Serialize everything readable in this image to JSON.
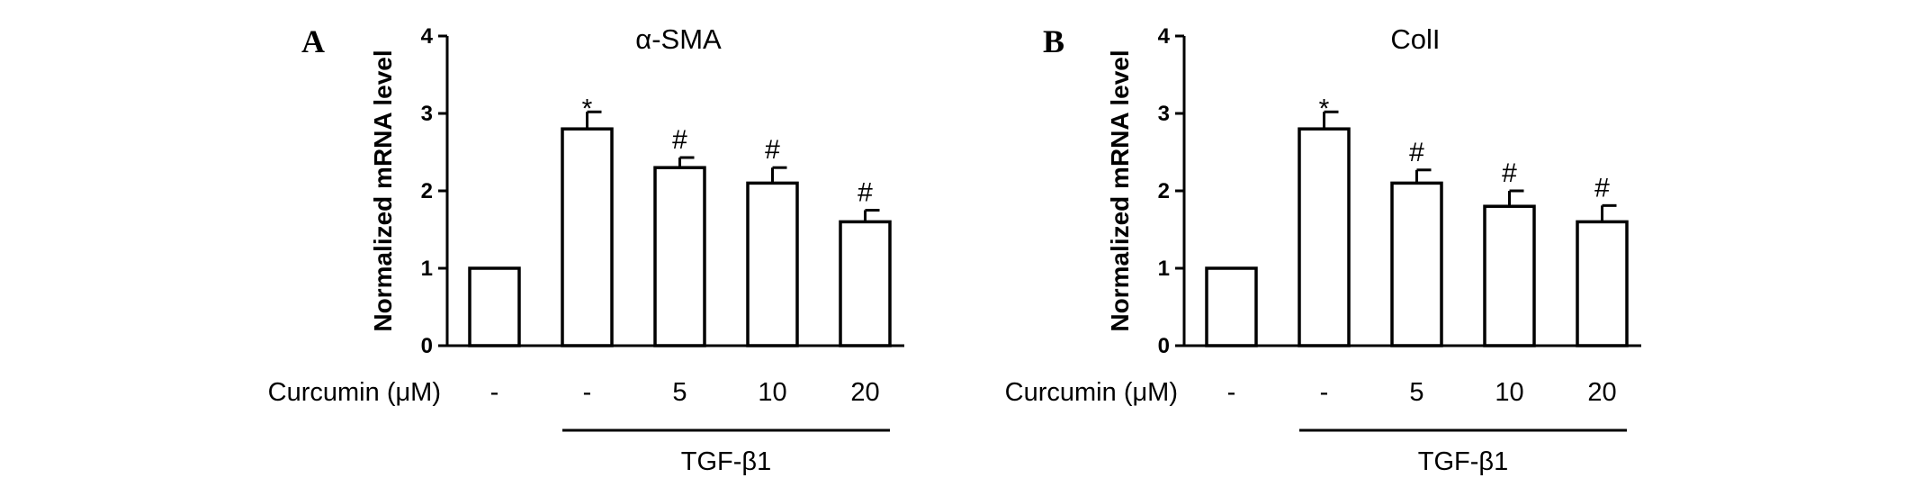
{
  "chart_data": [
    {
      "type": "bar",
      "panel": "A",
      "title": "α-SMA",
      "ylabel": "Normalized mRNA level",
      "xlabel": "",
      "ylim": [
        0,
        4
      ],
      "yticks": [
        0,
        1,
        2,
        3,
        4
      ],
      "row_label": "Curcumin (μM)",
      "categories": [
        "-",
        "-",
        "5",
        "10",
        "20"
      ],
      "values": [
        1.0,
        2.8,
        2.3,
        2.1,
        1.6
      ],
      "errors": [
        0,
        0.22,
        0.13,
        0.2,
        0.15
      ],
      "significance": [
        "",
        "*",
        "#",
        "#",
        "#"
      ],
      "group_label": "TGF-β1",
      "group_range": [
        1,
        4
      ],
      "grid": false,
      "legend": "none"
    },
    {
      "type": "bar",
      "panel": "B",
      "title": "ColI",
      "ylabel": "Normalized mRNA level",
      "xlabel": "",
      "ylim": [
        0,
        4
      ],
      "yticks": [
        0,
        1,
        2,
        3,
        4
      ],
      "row_label": "Curcumin (μM)",
      "categories": [
        "-",
        "-",
        "5",
        "10",
        "20"
      ],
      "values": [
        1.0,
        2.8,
        2.1,
        1.8,
        1.6
      ],
      "errors": [
        0,
        0.22,
        0.17,
        0.2,
        0.21
      ],
      "significance": [
        "",
        "*",
        "#",
        "#",
        "#"
      ],
      "group_label": "TGF-β1",
      "group_range": [
        1,
        4
      ],
      "grid": false,
      "legend": "none"
    }
  ]
}
